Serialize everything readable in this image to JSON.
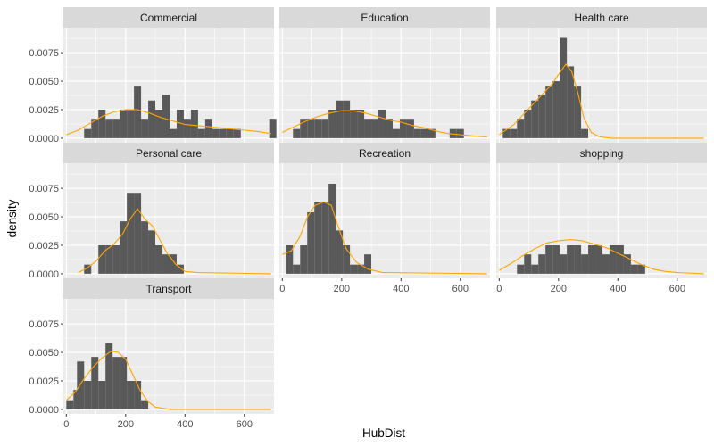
{
  "chart_data": {
    "type": "histogram-faceted",
    "xlabel": "HubDist",
    "ylabel": "density",
    "xlim": [
      -10,
      700
    ],
    "ylim": [
      -0.0004,
      0.0097
    ],
    "x_ticks": [
      0,
      200,
      400,
      600
    ],
    "x_tick_labels": [
      "0",
      "200",
      "400",
      "600"
    ],
    "y_ticks": [
      0,
      0.0025,
      0.005,
      0.0075
    ],
    "y_tick_labels": [
      "0.0000",
      "0.0025",
      "0.0050",
      "0.0075"
    ],
    "bin_width": 24,
    "density_color": "#FFA500",
    "bar_color": "#595959",
    "panel_background": "#EBEBEB",
    "strip_background": "#D9D9D9",
    "grid": true,
    "facets": [
      {
        "label": "Commercial",
        "bins": [
          [
            60,
            0.0008
          ],
          [
            84,
            0.0017
          ],
          [
            108,
            0.0025
          ],
          [
            132,
            0.0017
          ],
          [
            156,
            0.0017
          ],
          [
            180,
            0.0025
          ],
          [
            204,
            0.0025
          ],
          [
            228,
            0.0046
          ],
          [
            252,
            0.0017
          ],
          [
            276,
            0.0033
          ],
          [
            300,
            0.0025
          ],
          [
            324,
            0.0038
          ],
          [
            348,
            0.0008
          ],
          [
            372,
            0.0025
          ],
          [
            396,
            0.0017
          ],
          [
            420,
            0.0025
          ],
          [
            444,
            0.0008
          ],
          [
            468,
            0.0017
          ],
          [
            492,
            0.0008
          ],
          [
            516,
            0.0008
          ],
          [
            540,
            0.0008
          ],
          [
            564,
            0.0008
          ],
          [
            684,
            0.0017
          ]
        ],
        "density": [
          [
            0,
            0.0003
          ],
          [
            40,
            0.0007
          ],
          [
            80,
            0.0013
          ],
          [
            120,
            0.0019
          ],
          [
            160,
            0.0023
          ],
          [
            200,
            0.0025
          ],
          [
            240,
            0.0025
          ],
          [
            280,
            0.0022
          ],
          [
            320,
            0.0018
          ],
          [
            360,
            0.0015
          ],
          [
            400,
            0.0012
          ],
          [
            440,
            0.0011
          ],
          [
            480,
            0.001
          ],
          [
            520,
            0.0009
          ],
          [
            560,
            0.0008
          ],
          [
            600,
            0.0007
          ],
          [
            640,
            0.0006
          ],
          [
            690,
            0.0004
          ]
        ]
      },
      {
        "label": "Education",
        "bins": [
          [
            36,
            0.0008
          ],
          [
            60,
            0.0017
          ],
          [
            84,
            0.0017
          ],
          [
            108,
            0.0017
          ],
          [
            132,
            0.0017
          ],
          [
            156,
            0.0025
          ],
          [
            180,
            0.0033
          ],
          [
            204,
            0.0033
          ],
          [
            228,
            0.0025
          ],
          [
            252,
            0.0025
          ],
          [
            276,
            0.0017
          ],
          [
            300,
            0.0017
          ],
          [
            324,
            0.0025
          ],
          [
            348,
            0.0017
          ],
          [
            372,
            0.0008
          ],
          [
            396,
            0.0017
          ],
          [
            420,
            0.0017
          ],
          [
            444,
            0.0008
          ],
          [
            468,
            0.0008
          ],
          [
            492,
            0.0008
          ],
          [
            564,
            0.0008
          ],
          [
            588,
            0.0008
          ]
        ],
        "density": [
          [
            0,
            0.0005
          ],
          [
            40,
            0.001
          ],
          [
            80,
            0.0015
          ],
          [
            120,
            0.0019
          ],
          [
            160,
            0.0022
          ],
          [
            200,
            0.0024
          ],
          [
            240,
            0.0024
          ],
          [
            280,
            0.0022
          ],
          [
            320,
            0.0019
          ],
          [
            360,
            0.0016
          ],
          [
            400,
            0.0014
          ],
          [
            440,
            0.0011
          ],
          [
            480,
            0.0009
          ],
          [
            520,
            0.0006
          ],
          [
            560,
            0.0004
          ],
          [
            600,
            0.0003
          ],
          [
            640,
            0.0002
          ],
          [
            690,
            0.0001
          ]
        ]
      },
      {
        "label": "Health care",
        "bins": [
          [
            12,
            0.0008
          ],
          [
            36,
            0.0008
          ],
          [
            60,
            0.0017
          ],
          [
            84,
            0.0025
          ],
          [
            108,
            0.0033
          ],
          [
            132,
            0.0038
          ],
          [
            156,
            0.0046
          ],
          [
            180,
            0.005
          ],
          [
            204,
            0.0088
          ],
          [
            228,
            0.0063
          ],
          [
            252,
            0.0046
          ],
          [
            276,
            0.0008
          ]
        ],
        "density": [
          [
            0,
            0.0003
          ],
          [
            50,
            0.0012
          ],
          [
            100,
            0.0026
          ],
          [
            140,
            0.0037
          ],
          [
            180,
            0.0048
          ],
          [
            200,
            0.0056
          ],
          [
            225,
            0.0065
          ],
          [
            245,
            0.0058
          ],
          [
            265,
            0.004
          ],
          [
            285,
            0.0018
          ],
          [
            310,
            0.0005
          ],
          [
            340,
            0.0001
          ],
          [
            380,
            0
          ],
          [
            690,
            0
          ]
        ]
      },
      {
        "label": "Personal care",
        "bins": [
          [
            60,
            0.0008
          ],
          [
            84,
            0.0
          ],
          [
            108,
            0.0025
          ],
          [
            132,
            0.0025
          ],
          [
            156,
            0.0025
          ],
          [
            180,
            0.0046
          ],
          [
            204,
            0.0071
          ],
          [
            228,
            0.0071
          ],
          [
            252,
            0.0046
          ],
          [
            276,
            0.0038
          ],
          [
            300,
            0.0025
          ],
          [
            324,
            0.0017
          ],
          [
            348,
            0.0017
          ],
          [
            372,
            0.0008
          ]
        ],
        "density": [
          [
            40,
            0.0001
          ],
          [
            70,
            0.0005
          ],
          [
            100,
            0.0011
          ],
          [
            130,
            0.002
          ],
          [
            160,
            0.0026
          ],
          [
            190,
            0.0035
          ],
          [
            215,
            0.0048
          ],
          [
            240,
            0.0057
          ],
          [
            265,
            0.0048
          ],
          [
            290,
            0.0042
          ],
          [
            315,
            0.003
          ],
          [
            340,
            0.0018
          ],
          [
            370,
            0.0008
          ],
          [
            400,
            0.0002
          ],
          [
            440,
            0.0001
          ],
          [
            690,
            0
          ]
        ]
      },
      {
        "label": "Recreation",
        "bins": [
          [
            12,
            0.0025
          ],
          [
            36,
            0.0008
          ],
          [
            60,
            0.0025
          ],
          [
            84,
            0.0054
          ],
          [
            108,
            0.0063
          ],
          [
            132,
            0.0063
          ],
          [
            156,
            0.0079
          ],
          [
            180,
            0.0038
          ],
          [
            204,
            0.0025
          ],
          [
            228,
            0.0008
          ],
          [
            252,
            0.0008
          ],
          [
            276,
            0.0017
          ]
        ],
        "density": [
          [
            0,
            0.0017
          ],
          [
            30,
            0.002
          ],
          [
            60,
            0.0033
          ],
          [
            85,
            0.005
          ],
          [
            110,
            0.006
          ],
          [
            140,
            0.0063
          ],
          [
            165,
            0.006
          ],
          [
            190,
            0.004
          ],
          [
            215,
            0.0022
          ],
          [
            250,
            0.001
          ],
          [
            290,
            0.0004
          ],
          [
            340,
            0.0001
          ],
          [
            690,
            0
          ]
        ]
      },
      {
        "label": "shopping",
        "bins": [
          [
            60,
            0.0008
          ],
          [
            84,
            0.0017
          ],
          [
            108,
            0.0008
          ],
          [
            132,
            0.0017
          ],
          [
            156,
            0.0025
          ],
          [
            180,
            0.0025
          ],
          [
            204,
            0.0017
          ],
          [
            228,
            0.0025
          ],
          [
            252,
            0.0025
          ],
          [
            276,
            0.0017
          ],
          [
            300,
            0.0025
          ],
          [
            324,
            0.0025
          ],
          [
            348,
            0.0017
          ],
          [
            372,
            0.0025
          ],
          [
            396,
            0.0025
          ],
          [
            420,
            0.0017
          ],
          [
            444,
            0.0008
          ],
          [
            468,
            0.0008
          ]
        ],
        "density": [
          [
            0,
            0.0003
          ],
          [
            40,
            0.0009
          ],
          [
            80,
            0.0016
          ],
          [
            120,
            0.0022
          ],
          [
            160,
            0.0027
          ],
          [
            200,
            0.0029
          ],
          [
            240,
            0.003
          ],
          [
            280,
            0.0029
          ],
          [
            320,
            0.0026
          ],
          [
            360,
            0.0023
          ],
          [
            400,
            0.0018
          ],
          [
            440,
            0.0013
          ],
          [
            480,
            0.0008
          ],
          [
            520,
            0.0004
          ],
          [
            560,
            0.0002
          ],
          [
            600,
            0.0001
          ],
          [
            690,
            0
          ]
        ]
      },
      {
        "label": "Transport",
        "bins": [
          [
            0,
            0.0008
          ],
          [
            24,
            0.0017
          ],
          [
            36,
            0.0042
          ],
          [
            60,
            0.0025
          ],
          [
            84,
            0.0046
          ],
          [
            108,
            0.0025
          ],
          [
            132,
            0.0058
          ],
          [
            156,
            0.0046
          ],
          [
            180,
            0.0046
          ],
          [
            204,
            0.0025
          ],
          [
            228,
            0.0025
          ],
          [
            252,
            0.0008
          ]
        ],
        "density": [
          [
            0,
            0.0008
          ],
          [
            30,
            0.0015
          ],
          [
            60,
            0.0027
          ],
          [
            90,
            0.0037
          ],
          [
            120,
            0.0045
          ],
          [
            150,
            0.0051
          ],
          [
            175,
            0.005
          ],
          [
            200,
            0.0044
          ],
          [
            225,
            0.003
          ],
          [
            250,
            0.0016
          ],
          [
            275,
            0.0007
          ],
          [
            300,
            0.0002
          ],
          [
            350,
            0
          ],
          [
            690,
            0
          ]
        ]
      }
    ]
  }
}
